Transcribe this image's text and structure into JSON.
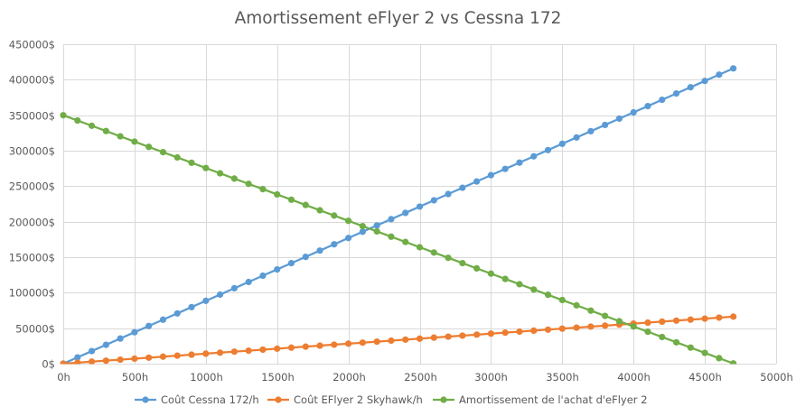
{
  "chart_data": {
    "type": "line",
    "title": "Amortissement eFlyer 2 vs Cessna 172",
    "xlabel": "",
    "ylabel": "",
    "x_tick_labels": [
      "0h",
      "500h",
      "1000h",
      "1500h",
      "2000h",
      "2500h",
      "3000h",
      "3500h",
      "4000h",
      "4500h",
      "5000h"
    ],
    "y_tick_labels": [
      "0$",
      "50000$",
      "100000$",
      "150000$",
      "200000$",
      "250000$",
      "300000$",
      "350000$",
      "400000$",
      "450000$"
    ],
    "xlim": [
      0,
      5000
    ],
    "ylim": [
      0,
      450000
    ],
    "grid": true,
    "legend_position": "bottom",
    "x": [
      0,
      100,
      200,
      300,
      400,
      500,
      600,
      700,
      800,
      900,
      1000,
      1100,
      1200,
      1300,
      1400,
      1500,
      1600,
      1700,
      1800,
      1900,
      2000,
      2100,
      2200,
      2300,
      2400,
      2500,
      2600,
      2700,
      2800,
      2900,
      3000,
      3100,
      3200,
      3300,
      3400,
      3500,
      3600,
      3700,
      3800,
      3900,
      4000,
      4100,
      4200,
      4300,
      4400,
      4500,
      4600,
      4700
    ],
    "series": [
      {
        "name": "Coût Cessna 172/h",
        "color": "#5b9bd5",
        "values": [
          0,
          8850,
          17700,
          26550,
          35400,
          44250,
          53100,
          61950,
          70800,
          79650,
          88500,
          97350,
          106200,
          115050,
          123900,
          132750,
          141600,
          150450,
          159300,
          168150,
          177000,
          185850,
          194700,
          203550,
          212400,
          221250,
          230100,
          238950,
          247800,
          256650,
          265500,
          274350,
          283200,
          292050,
          300900,
          309750,
          318600,
          327450,
          336300,
          345150,
          354000,
          362850,
          371700,
          380550,
          389400,
          398250,
          407100,
          415950
        ]
      },
      {
        "name": "Coût EFlyer 2 Skyhawk/h",
        "color": "#ed7d31",
        "values": [
          0,
          1410,
          2820,
          4230,
          5640,
          7050,
          8460,
          9870,
          11280,
          12690,
          14100,
          15510,
          16920,
          18330,
          19740,
          21150,
          22560,
          23970,
          25380,
          26790,
          28200,
          29610,
          31020,
          32430,
          33840,
          35250,
          36660,
          38070,
          39480,
          40890,
          42300,
          43710,
          45120,
          46530,
          47940,
          49350,
          50760,
          52170,
          53580,
          54990,
          56400,
          57810,
          59220,
          60630,
          62040,
          63450,
          64860,
          66270
        ]
      },
      {
        "name": "Amortissement de l'achat d'eFlyer 2",
        "color": "#70ad47",
        "values": [
          350000,
          342560,
          335120,
          327680,
          320240,
          312800,
          305360,
          297920,
          290480,
          283040,
          275600,
          268160,
          260720,
          253280,
          245840,
          238400,
          230960,
          223520,
          216080,
          208640,
          201200,
          193760,
          186320,
          178880,
          171440,
          164000,
          156560,
          149120,
          141680,
          134240,
          126800,
          119360,
          111920,
          104480,
          97040,
          89600,
          82160,
          74720,
          67280,
          59840,
          52400,
          44960,
          37520,
          30080,
          22640,
          15200,
          7760,
          320
        ]
      }
    ]
  }
}
